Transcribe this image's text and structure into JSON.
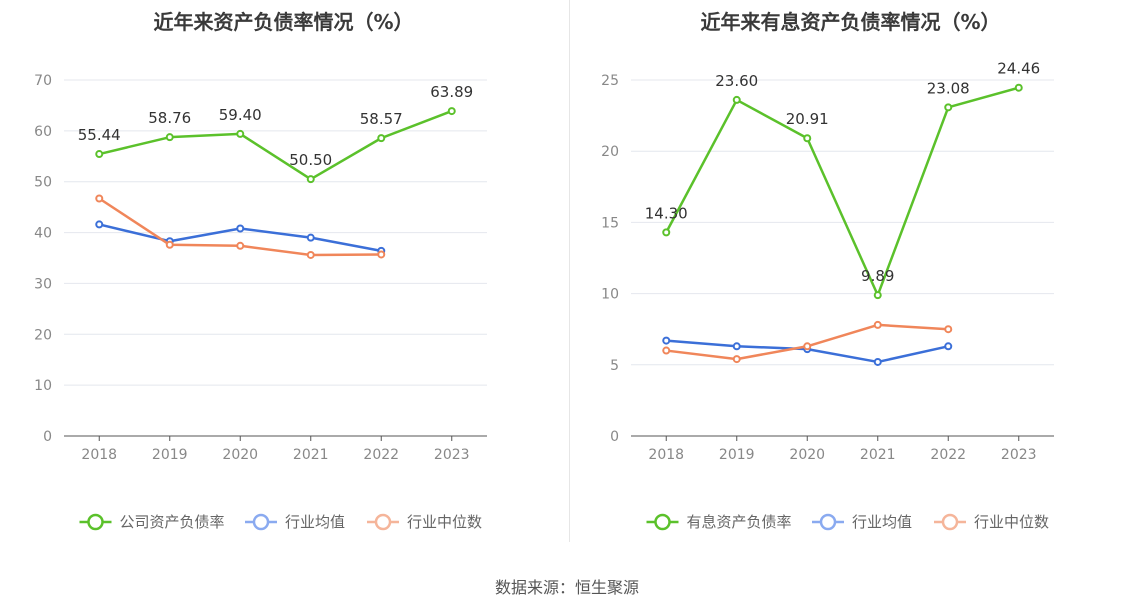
{
  "colors": {
    "company": "#5bc12b",
    "industry_avg": "#3b6fd8",
    "industry_median": "#f0865a",
    "legend_avg": "#8aaaf0",
    "legend_median": "#f5b59a",
    "grid": "#e4e7ee",
    "axis": "#555555",
    "tick_text": "#888888",
    "label_text": "#333333"
  },
  "chart_data": [
    {
      "type": "line",
      "title": "近年来资产负债率情况（%）",
      "x": [
        "2018",
        "2019",
        "2020",
        "2021",
        "2022",
        "2023"
      ],
      "ylim": [
        0,
        70
      ],
      "yticks": [
        0,
        10,
        20,
        30,
        40,
        50,
        60,
        70
      ],
      "grid": true,
      "legend_position": "bottom",
      "series": [
        {
          "name": "公司资产负债率",
          "key": "company",
          "values": [
            55.44,
            58.76,
            59.4,
            50.5,
            58.57,
            63.89
          ],
          "labels": [
            "55.44",
            "58.76",
            "59.40",
            "50.50",
            "58.57",
            "63.89"
          ]
        },
        {
          "name": "行业均值",
          "key": "industry_avg",
          "values": [
            41.6,
            38.3,
            40.8,
            39.0,
            36.4,
            null
          ]
        },
        {
          "name": "行业中位数",
          "key": "industry_median",
          "values": [
            46.7,
            37.6,
            37.4,
            35.6,
            35.7,
            null
          ]
        }
      ]
    },
    {
      "type": "line",
      "title": "近年来有息资产负债率情况（%）",
      "x": [
        "2018",
        "2019",
        "2020",
        "2021",
        "2022",
        "2023"
      ],
      "ylim": [
        0,
        25
      ],
      "yticks": [
        0,
        5,
        10,
        15,
        20,
        25
      ],
      "grid": true,
      "legend_position": "bottom",
      "series": [
        {
          "name": "有息资产负债率",
          "key": "company",
          "values": [
            14.3,
            23.6,
            20.91,
            9.89,
            23.08,
            24.46
          ],
          "labels": [
            "14.30",
            "23.60",
            "20.91",
            "9.89",
            "23.08",
            "24.46"
          ]
        },
        {
          "name": "行业均值",
          "key": "industry_avg",
          "values": [
            6.7,
            6.3,
            6.1,
            5.2,
            6.3,
            null
          ]
        },
        {
          "name": "行业中位数",
          "key": "industry_median",
          "values": [
            6.0,
            5.4,
            6.3,
            7.8,
            7.5,
            null
          ]
        }
      ]
    }
  ],
  "footer": {
    "source": "数据来源：恒生聚源"
  }
}
